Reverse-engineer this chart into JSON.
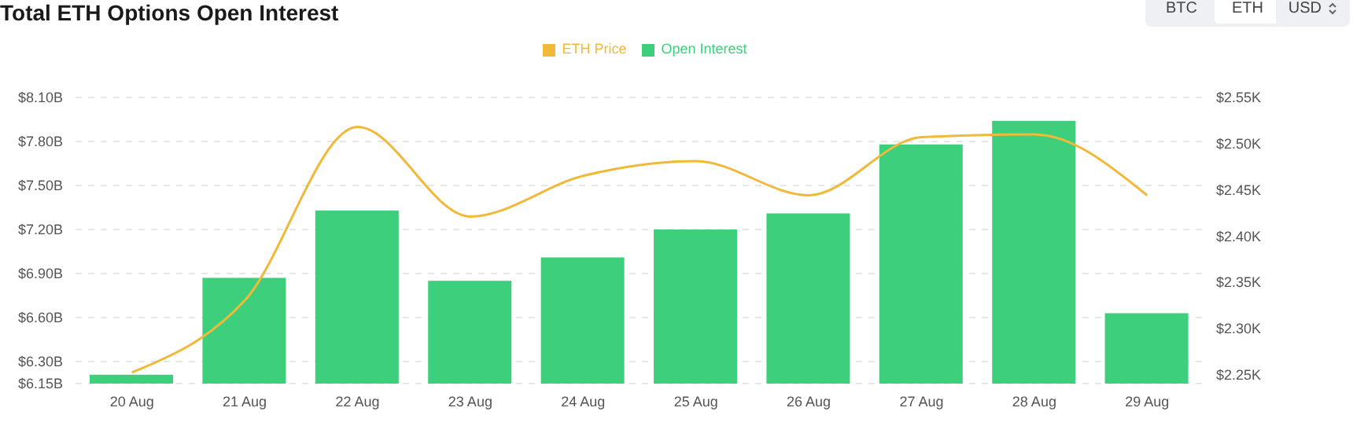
{
  "chart_data": {
    "type": "bar",
    "title": "Total ETH Options Open Interest",
    "annotations": [
      "BTC",
      "ETH",
      "USD"
    ],
    "categories": [
      "20 Aug",
      "21 Aug",
      "22 Aug",
      "23 Aug",
      "24 Aug",
      "25 Aug",
      "26 Aug",
      "27 Aug",
      "28 Aug",
      "29 Aug"
    ],
    "series": [
      {
        "name": "ETH Price",
        "type": "line",
        "axis": "y2",
        "color": "#f0b93a",
        "values": [
          2.252,
          2.33,
          2.518,
          2.421,
          2.465,
          2.481,
          2.444,
          2.507,
          2.51,
          2.444
        ]
      },
      {
        "name": "Open Interest",
        "color": "#3ecf7c",
        "values": [
          6.21,
          6.87,
          7.33,
          6.85,
          7.01,
          7.2,
          7.31,
          7.78,
          7.94,
          6.63
        ]
      }
    ],
    "ylim": [
      6.15,
      8.1
    ],
    "yticks": [
      {
        "value": 6.15,
        "label": "$6.15B"
      },
      {
        "value": 6.3,
        "label": "$6.30B"
      },
      {
        "value": 6.6,
        "label": "$6.60B"
      },
      {
        "value": 6.9,
        "label": "$6.90B"
      },
      {
        "value": 7.2,
        "label": "$7.20B"
      },
      {
        "value": 7.5,
        "label": "$7.50B"
      },
      {
        "value": 7.8,
        "label": "$7.80B"
      },
      {
        "value": 8.1,
        "label": "$8.10B"
      }
    ],
    "y2lim": [
      2.24,
      2.55
    ],
    "y2ticks": [
      {
        "value": 2.25,
        "label": "$2.25K"
      },
      {
        "value": 2.3,
        "label": "$2.30K"
      },
      {
        "value": 2.35,
        "label": "$2.35K"
      },
      {
        "value": 2.4,
        "label": "$2.40K"
      },
      {
        "value": 2.45,
        "label": "$2.45K"
      },
      {
        "value": 2.5,
        "label": "$2.50K"
      },
      {
        "value": 2.55,
        "label": "$2.55K"
      }
    ],
    "grid": "y",
    "legend": "top",
    "marker": "none"
  }
}
